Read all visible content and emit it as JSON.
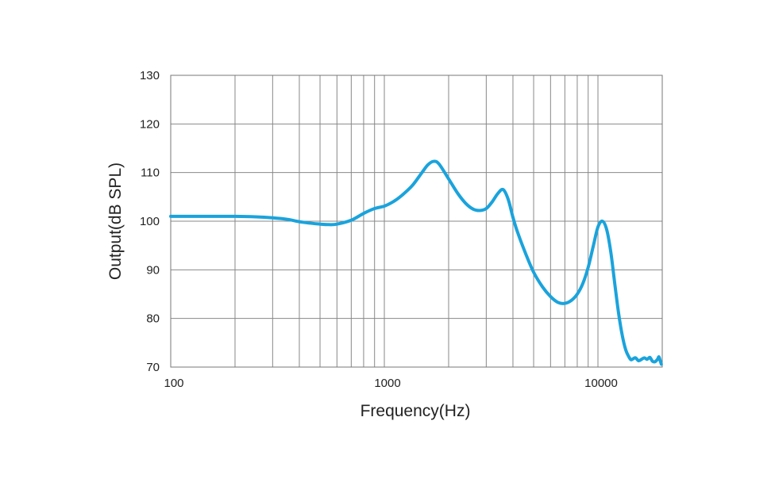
{
  "chart_data": {
    "type": "line",
    "title": "",
    "xlabel": "Frequency(Hz)",
    "ylabel": "Output(dB SPL)",
    "xscale": "log",
    "xlim": [
      100,
      20000
    ],
    "ylim": [
      70,
      130
    ],
    "grid": true,
    "x_tick_labels": [
      "100",
      "1000",
      "10000"
    ],
    "x_tick_values": [
      100,
      1000,
      10000
    ],
    "y_ticks": [
      70,
      80,
      90,
      100,
      110,
      120,
      130
    ],
    "colors": {
      "line": "#1aa3dc",
      "grid": "#888888",
      "text": "#222222"
    },
    "series": [
      {
        "x": [
          100,
          150,
          200,
          250,
          300,
          350,
          400,
          450,
          500,
          550,
          600,
          700,
          800,
          900,
          1000,
          1100,
          1200,
          1350,
          1500,
          1600,
          1700,
          1800,
          2000,
          2200,
          2400,
          2600,
          2800,
          3000,
          3200,
          3400,
          3600,
          3800,
          4000,
          4200,
          4600,
          5000,
          5500,
          6000,
          6500,
          7000,
          7500,
          8000,
          8500,
          9000,
          9500,
          10000,
          10500,
          11000,
          11500,
          12000,
          12500,
          13000,
          13500,
          14000,
          14300,
          14600,
          15000,
          15500,
          16000,
          16500,
          17000,
          17500,
          18000,
          18500,
          19000,
          19300,
          19600,
          19800
        ],
        "y": [
          101,
          101,
          101,
          100.9,
          100.7,
          100.4,
          99.9,
          99.6,
          99.4,
          99.3,
          99.4,
          100.2,
          101.6,
          102.6,
          103.1,
          104,
          105.2,
          107.3,
          110,
          111.6,
          112.3,
          111.8,
          108.7,
          105.8,
          103.7,
          102.5,
          102.2,
          102.6,
          104,
          105.7,
          106.5,
          104.5,
          100.8,
          97.8,
          93.2,
          89.5,
          86.5,
          84.5,
          83.3,
          83.1,
          83.7,
          85,
          87.2,
          90.5,
          94.8,
          98.8,
          100,
          98.2,
          93.5,
          87,
          81,
          76.5,
          73.5,
          72,
          71.5,
          71.7,
          71.9,
          71.3,
          71.6,
          71.9,
          71.6,
          72,
          71.2,
          71.1,
          71.6,
          72.1,
          71.2,
          70.6
        ]
      }
    ]
  }
}
